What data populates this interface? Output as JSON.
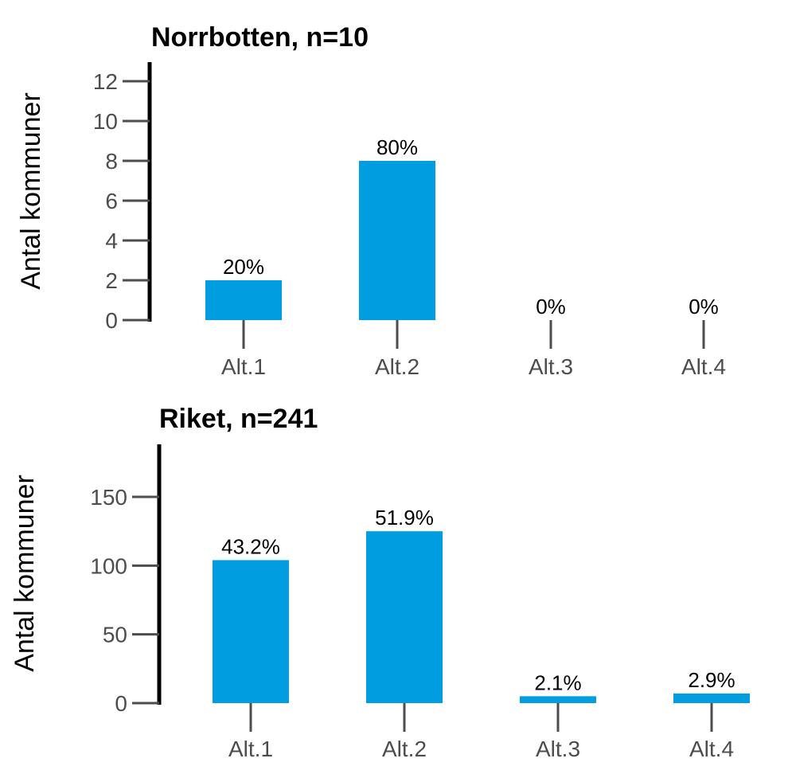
{
  "colors": {
    "bar": "#009ee0",
    "axis": "#000000",
    "tick": "#4d4d4d",
    "text": "#000000",
    "panel_bg": "#ffffff"
  },
  "chart_data": [
    {
      "type": "bar",
      "title": "Norrbotten, n=10",
      "ylabel": "Antal kommuner",
      "xlabel": "",
      "categories": [
        "Alt.1",
        "Alt.2",
        "Alt.3",
        "Alt.4"
      ],
      "values": [
        2,
        8,
        0,
        0
      ],
      "data_labels": [
        "20%",
        "80%",
        "0%",
        "0%"
      ],
      "yticks": [
        0,
        2,
        4,
        6,
        8,
        10,
        12
      ],
      "ylim": [
        0,
        12
      ],
      "grid": false,
      "legend": "none"
    },
    {
      "type": "bar",
      "title": "Riket, n=241",
      "ylabel": "Antal kommuner",
      "xlabel": "",
      "categories": [
        "Alt.1",
        "Alt.2",
        "Alt.3",
        "Alt.4"
      ],
      "values": [
        104,
        125,
        5,
        7
      ],
      "data_labels": [
        "43.2%",
        "51.9%",
        "2.1%",
        "2.9%"
      ],
      "yticks": [
        0,
        50,
        100,
        150
      ],
      "ylim": [
        0,
        188
      ],
      "grid": false,
      "legend": "none"
    }
  ]
}
